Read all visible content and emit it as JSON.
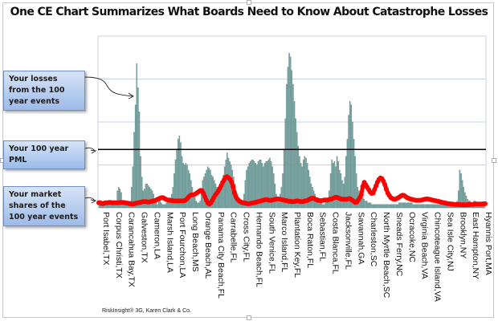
{
  "title": "One CE Chart Summarizes What Boards Need to Know About Catastrophe Losses",
  "footer": "RiskInsight® 3G, Karen Clark & Co.",
  "callouts": [
    {
      "text": "Your losses from the 100 year events"
    },
    {
      "text": "Your 100 year PML"
    },
    {
      "text": "Your market shares of the 100 year events"
    }
  ],
  "colors": {
    "bars": "#7aa7a5",
    "bar_edge": "#4f7d7b",
    "share_line": "#ff0000",
    "pml_line": "#000000",
    "grid": "#c9d3e3"
  },
  "chart_data": {
    "type": "bar",
    "title": "One CE Chart Summarizes What Boards Need to Know About Catastrophe Losses",
    "xlabel": "",
    "ylabel": "",
    "ylim": [
      0,
      100
    ],
    "grid": true,
    "yticks": [
      25,
      50,
      75,
      100
    ],
    "tick_labels": [
      "Port Isabel,TX",
      "Corpus Christi,TX",
      "Carancahua Bay,TX",
      "Galveston,TX",
      "Cameron,LA",
      "Marsh Island,LA",
      "Port Fourchon,LA",
      "Long Beach,MS",
      "Orange Beach,AL",
      "Panama City Beach,FL",
      "Carrabelle,FL",
      "Cross City,FL",
      "Hernando Beach,FL",
      "South Venice,FL",
      "Marco Island,FL",
      "Plantation Key,FL",
      "Boca Raton,FL",
      "Sebastian,FL",
      "Costa Blanca,FL",
      "Jacksonville,FL",
      "Savannah,GA",
      "Charleston,SC",
      "North Myrtle Beach,SC",
      "Sneads Ferry,NC",
      "Ocracoke,NC",
      "Virginia Beach,VA",
      "Chincoteague Island,VA",
      "Sea Isle City,NJ",
      "Brooklyn,NY",
      "East Hampton,NY",
      "Hyannis Port,MA"
    ],
    "pml": 34,
    "series": [
      {
        "name": "Your losses from the 100 year events",
        "type": "bar",
        "values": [
          2,
          2,
          2,
          2,
          2,
          3,
          3,
          3,
          4,
          3,
          2,
          2,
          3,
          4,
          10,
          12,
          11,
          9,
          3,
          2,
          2,
          2,
          2,
          3,
          4,
          12,
          24,
          44,
          60,
          84,
          70,
          56,
          30,
          18,
          10,
          11,
          14,
          14,
          13,
          12,
          11,
          10,
          8,
          4,
          3,
          2,
          4,
          6,
          3,
          2,
          2,
          2,
          3,
          4,
          5,
          6,
          8,
          12,
          20,
          28,
          34,
          40,
          42,
          38,
          30,
          26,
          25,
          26,
          25,
          22,
          20,
          16,
          12,
          8,
          6,
          4,
          3,
          3,
          4,
          10,
          16,
          18,
          20,
          22,
          24,
          23,
          22,
          19,
          18,
          16,
          14,
          12,
          11,
          10,
          12,
          14,
          19,
          24,
          28,
          32,
          29,
          27,
          25,
          22,
          18,
          14,
          10,
          8,
          6,
          4,
          3,
          4,
          8,
          16,
          22,
          24,
          26,
          27,
          28,
          28,
          27,
          26,
          25,
          27,
          28,
          28,
          26,
          24,
          26,
          27,
          27,
          28,
          29,
          27,
          24,
          20,
          14,
          8,
          5,
          6,
          8,
          12,
          20,
          34,
          52,
          72,
          82,
          90,
          88,
          80,
          72,
          62,
          52,
          44,
          36,
          30,
          26,
          24,
          28,
          30,
          29,
          26,
          22,
          18,
          14,
          12,
          10,
          8,
          6,
          6,
          5,
          4,
          3,
          2,
          2,
          3,
          4,
          6,
          10,
          20,
          28,
          26,
          27,
          24,
          30,
          27,
          22,
          20,
          16,
          14,
          18,
          30,
          40,
          54,
          62,
          60,
          50,
          40,
          30,
          20,
          12,
          10,
          8,
          7,
          6,
          5,
          4,
          4,
          3,
          3,
          3,
          2,
          2,
          2,
          2,
          2,
          2,
          2,
          2,
          2,
          2,
          2,
          2,
          2,
          2,
          2,
          2,
          2,
          2,
          2,
          2,
          2,
          3,
          3,
          3,
          3,
          3,
          3,
          3,
          3,
          3,
          3,
          3,
          2,
          2,
          2,
          2,
          2,
          2,
          2,
          2,
          2,
          2,
          2,
          2,
          2,
          2,
          2,
          2,
          2,
          2,
          2,
          2,
          2,
          2,
          2,
          2,
          2,
          2,
          2,
          2,
          2,
          2,
          2,
          2,
          2,
          3,
          4,
          10,
          22,
          20,
          16,
          12,
          9,
          7,
          5,
          4,
          4,
          3,
          3,
          4,
          4,
          3,
          3,
          3,
          2,
          2,
          2,
          2
        ]
      },
      {
        "name": "Your market shares of the 100 year events",
        "type": "line",
        "values": [
          3,
          3,
          2.5,
          2.5,
          2.8,
          3,
          3,
          3.2,
          3.2,
          3,
          3,
          3,
          3,
          3,
          3.1,
          3.2,
          3.2,
          3.1,
          3,
          2.8,
          2.6,
          2.4,
          2.3,
          2.2,
          2.4,
          2.6,
          2.8,
          3,
          3.2,
          3.4,
          3.6,
          3.6,
          3.6,
          3.4,
          3.4,
          3.6,
          3.8,
          4,
          4.2,
          4.6,
          5,
          5.4,
          5.8,
          6,
          5.8,
          5.2,
          4.8,
          4.6,
          4.4,
          4.2,
          4.2,
          4,
          4,
          4,
          4,
          4,
          4,
          4,
          4.2,
          4.6,
          5.4,
          6.4,
          7.2,
          7.6,
          7.6,
          7.8,
          8.4,
          9,
          9.6,
          10.2,
          10,
          8.4,
          6.4,
          4.4,
          2.8,
          2.2,
          3,
          4.4,
          6,
          7.4,
          8.6,
          9.8,
          11.2,
          13,
          14.8,
          16.2,
          17.8,
          18.2,
          17.4,
          16.6,
          15.2,
          12.4,
          8.6,
          6.4,
          5,
          4.2,
          3.6,
          3.2,
          3,
          2.8,
          2.6,
          2.4,
          2.4,
          2.6,
          2.8,
          3,
          3.2,
          3.4,
          3.6,
          3.8,
          4,
          4.4,
          4.6,
          4.8,
          4.8,
          4.6,
          4.4,
          4.4,
          4.6,
          4.8,
          5,
          5.2,
          5.2,
          5,
          4.8,
          4.6,
          4.4,
          4.2,
          4,
          3.8,
          3.8,
          3.6,
          3.6,
          3.8,
          4,
          4,
          3.8,
          3.6,
          3.6,
          3.8,
          4,
          4.2,
          4.6,
          5,
          5.4,
          5.6,
          5.4,
          5,
          4.6,
          4.4,
          4.2,
          4.2,
          4.4,
          4.6,
          4.6,
          4.6,
          4.8,
          5,
          5.2,
          5.6,
          6,
          6.2,
          6,
          5.6,
          5.2,
          5,
          5,
          5,
          5,
          5.2,
          5.4,
          5,
          4.4,
          3.8,
          3.2,
          3.4,
          4.6,
          6,
          7.6,
          12.4,
          14.8,
          13.4,
          12,
          10.6,
          9.2,
          8.4,
          8.6,
          10.6,
          12.8,
          15,
          16.6,
          17.4,
          17,
          15.6,
          13.4,
          10.8,
          8.6,
          7.2,
          6,
          5.4,
          5,
          5,
          5.4,
          5.8,
          6.4,
          7,
          7.4,
          7.2,
          6.6,
          6,
          5.6,
          5.2,
          5,
          4.8,
          4.6,
          4.4,
          4.4,
          4.4,
          4.4,
          4.6,
          4.8,
          5,
          5.2,
          5.2,
          5,
          4.8,
          4.6,
          4.4,
          4.2,
          4,
          3.8,
          3.6,
          3.4,
          3.2,
          3,
          2.8,
          2.6,
          2.4,
          2.4,
          2.2,
          2.2,
          2,
          2,
          2,
          2,
          1.8,
          1.8,
          1.8,
          1.8,
          1.8,
          1.8,
          2,
          2,
          2,
          2,
          2.2,
          2.2,
          2.2,
          2.2,
          2.2,
          2.2,
          2.4,
          2.4
        ]
      }
    ]
  }
}
